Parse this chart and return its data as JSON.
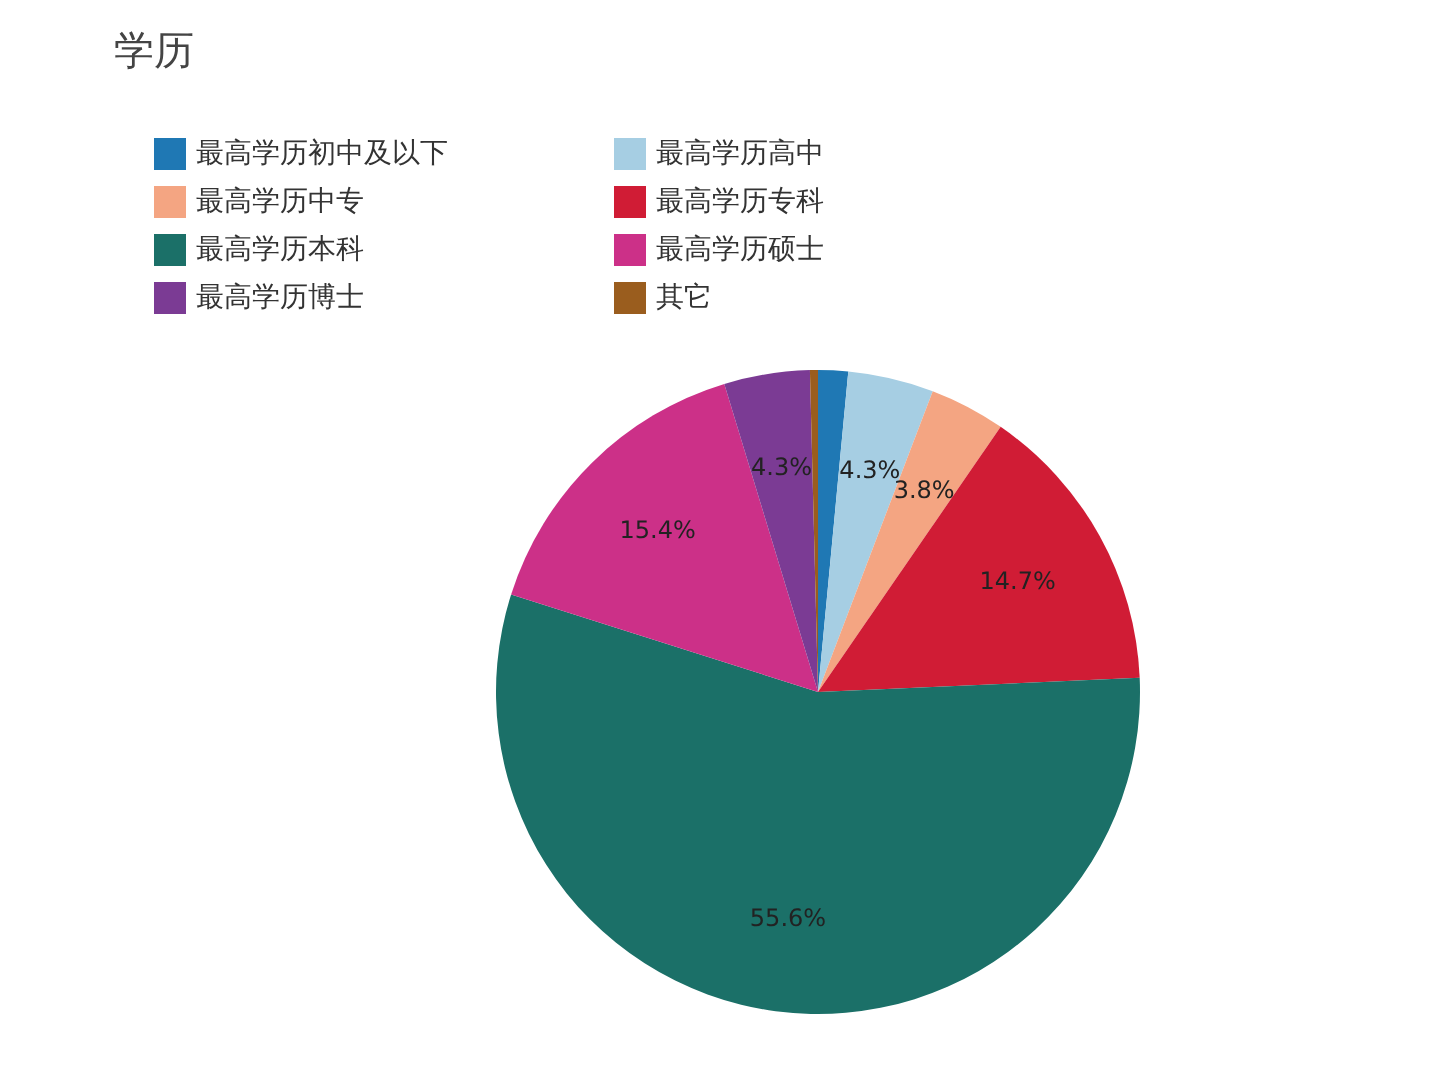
{
  "chart_data": {
    "type": "pie",
    "title": "学历",
    "categories": [
      "最高学历初中及以下",
      "最高学历高中",
      "最高学历中专",
      "最高学历专科",
      "最高学历本科",
      "最高学历硕士",
      "最高学历博士",
      "其它"
    ],
    "values": [
      1.5,
      4.3,
      3.8,
      14.7,
      55.6,
      15.4,
      4.3,
      0.4
    ],
    "value_labels": [
      null,
      "4.3%",
      "3.8%",
      "14.7%",
      "55.6%",
      "15.4%",
      "4.3%",
      null
    ],
    "colors": [
      "#1f78b4",
      "#a6cee3",
      "#f4a582",
      "#d01c35",
      "#1b7068",
      "#cc3088",
      "#7b3b94",
      "#9a5d1e"
    ],
    "legend": "top left"
  }
}
